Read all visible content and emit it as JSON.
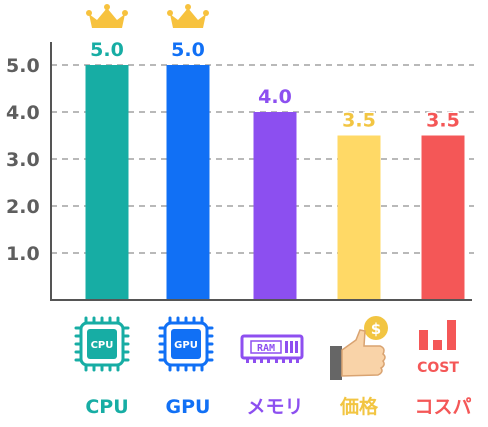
{
  "chart_data": {
    "type": "bar",
    "categories": [
      "CPU",
      "GPU",
      "メモリ",
      "価格",
      "コスパ"
    ],
    "values": [
      5.0,
      5.0,
      4.0,
      3.5,
      3.5
    ],
    "value_labels": [
      "5.0",
      "5.0",
      "4.0",
      "3.5",
      "3.5"
    ],
    "y_ticks": [
      "1.0",
      "2.0",
      "3.0",
      "4.0",
      "5.0"
    ],
    "ylim": [
      0,
      5.5
    ],
    "grid": "dashed horizontal",
    "colors": [
      "#17ada4",
      "#1170f5",
      "#8c4ff0",
      "#ffd966",
      "#f45757"
    ],
    "label_colors": [
      "#17ada4",
      "#1170f5",
      "#8c4ff0",
      "#f2c542",
      "#f45757"
    ],
    "icons": [
      "cpu-chip-icon",
      "gpu-chip-icon",
      "ram-stick-icon",
      "price-hand-coin-icon",
      "cost-chart-icon"
    ],
    "icon_texts": {
      "cpu": "CPU",
      "gpu": "GPU",
      "ram": "RAM",
      "cost": "COST",
      "coin": "$"
    },
    "crowns_on": [
      0,
      1
    ],
    "crown_icon": "crown-icon",
    "crown_color": "#f7c23e"
  }
}
